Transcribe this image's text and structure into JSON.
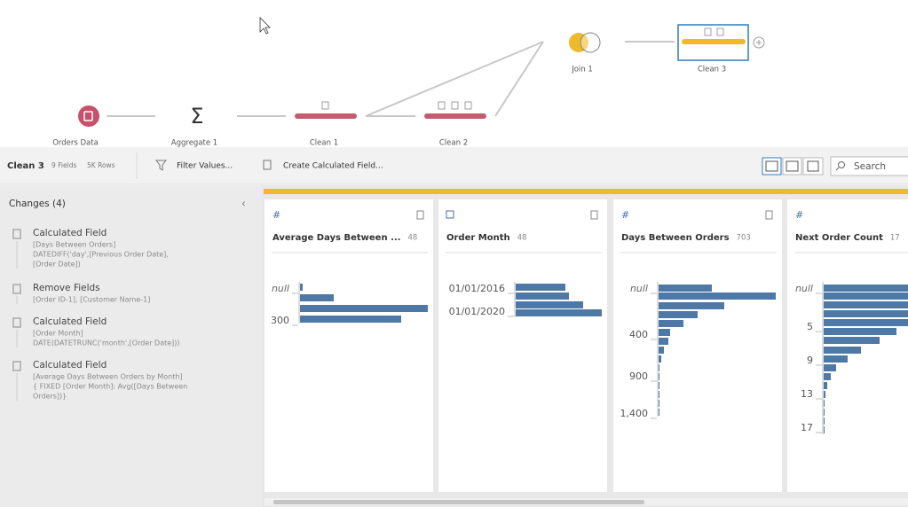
{
  "flow": {
    "nodes": [
      {
        "label": "Orders Data"
      },
      {
        "label": "Aggregate 1"
      },
      {
        "label": "Clean 1"
      },
      {
        "label": "Clean 2"
      },
      {
        "label": "Join 1"
      },
      {
        "label": "Clean 3"
      }
    ]
  },
  "toolbar": {
    "step": "Clean 3",
    "fields": "9 Fields",
    "rows": "5K Rows",
    "actions": [
      "Filter Values...",
      "Create Calculated Field..."
    ],
    "search": "Search"
  },
  "changes": {
    "title": "Changes (4)",
    "items": [
      {
        "title": "Calculated Field",
        "details": [
          "[Days Between Orders]",
          "DATEDIFF('day',[Previous Order Date],",
          "[Order Date])"
        ]
      },
      {
        "title": "Remove Fields",
        "details": [
          "[Order ID-1], [Customer Name-1]"
        ]
      },
      {
        "title": "Calculated Field",
        "details": [
          "[Order Month]",
          "DATE(DATETRUNC('month',[Order Date]))"
        ]
      },
      {
        "title": "Calculated Field",
        "details": [
          "[Average Days Between Orders by Month]",
          "{ FIXED [Order Month]: Avg([Days Between",
          "Orders])}"
        ]
      }
    ]
  },
  "profile": {
    "cards": [
      {
        "name": "Average Days Between ...",
        "count": 48,
        "axis": [
          "null",
          "300"
        ]
      },
      {
        "name": "Order Month",
        "count": 48,
        "axis": [
          "01/01/2016",
          "01/01/2020"
        ]
      },
      {
        "name": "Days Between Orders",
        "count": 703,
        "axis": [
          "null",
          "400",
          "900",
          "1,400"
        ]
      },
      {
        "name": "Next Order Count",
        "count": 17,
        "axis": [
          "null",
          "5",
          "9",
          "13",
          "17"
        ]
      }
    ]
  }
}
